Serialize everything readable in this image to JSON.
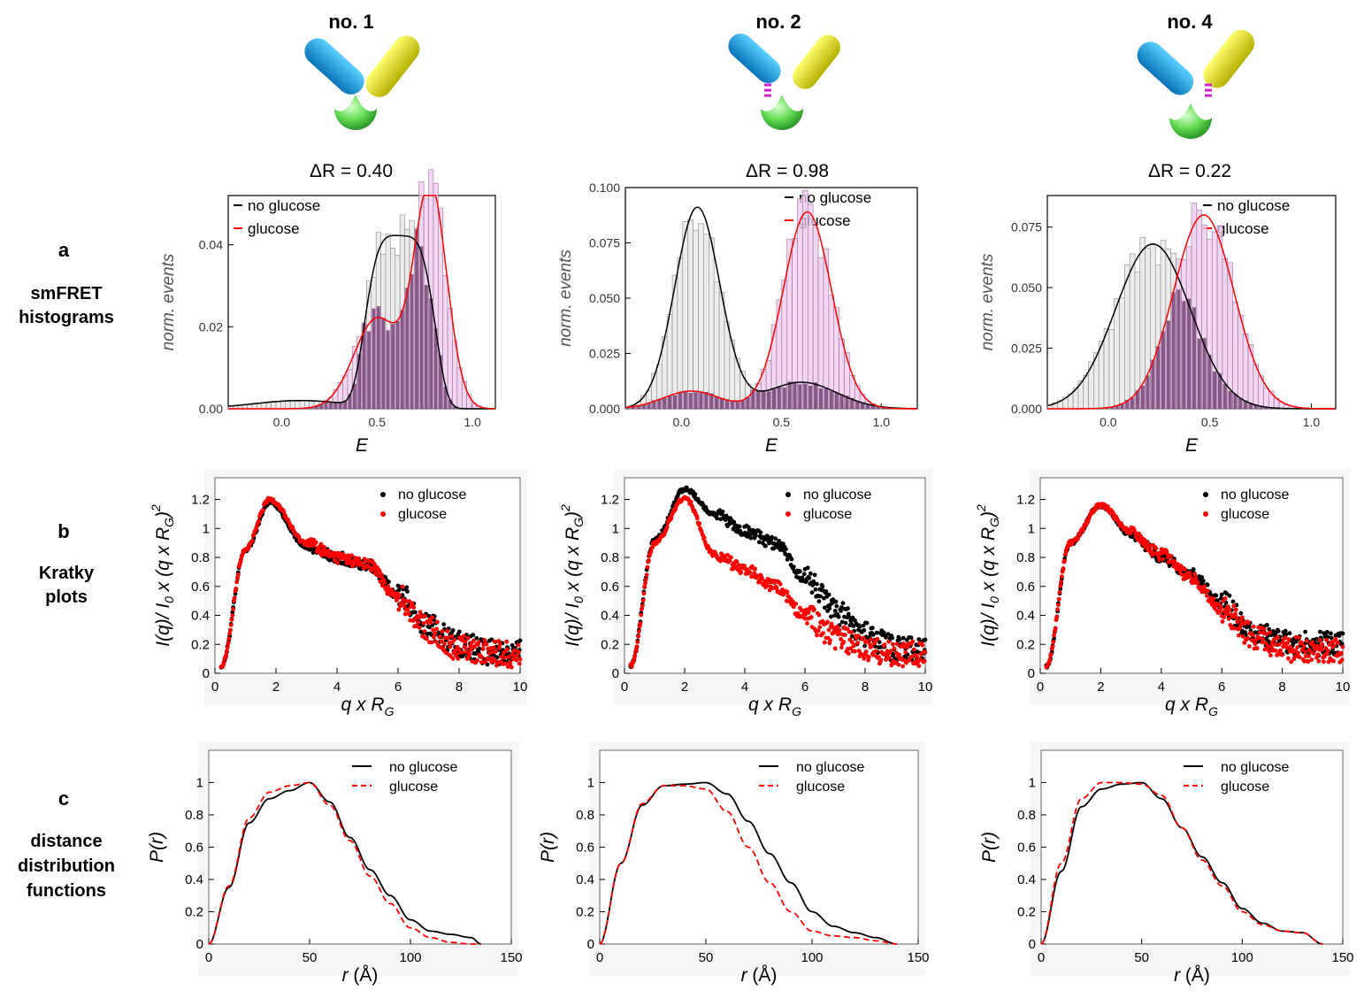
{
  "columns": [
    {
      "title": "no. 1",
      "delta_r": "ΔR = 0.40"
    },
    {
      "title": "no. 2",
      "delta_r": "ΔR = 0.98"
    },
    {
      "title": "no. 4",
      "delta_r": "ΔR = 0.22"
    }
  ],
  "rows": [
    {
      "letter": "a",
      "line1": "smFRET",
      "line2": "histograms"
    },
    {
      "letter": "b",
      "line1": "Kratky",
      "line2": "plots"
    },
    {
      "letter": "c",
      "line1": "distance",
      "line2": "distribution",
      "line3": "functions"
    }
  ],
  "colors": {
    "no_glucose": "#000000",
    "glucose": "#ff0000",
    "hist_no_glucose": "#ececec",
    "hist_glucose": "#eccaec",
    "hist_overlap": "#6b3a6b"
  },
  "chart_data": [
    {
      "type": "bar",
      "panel": "a",
      "column": "no. 1",
      "xlabel": "E",
      "ylabel": "norm. events",
      "xlim": [
        -0.28,
        1.12
      ],
      "ylim": [
        0,
        0.052
      ],
      "xticks": [
        "0.0",
        "0.5",
        "1.0"
      ],
      "yticks": [
        "0.00",
        "0.02",
        "0.04"
      ],
      "legend": [
        "no glucose",
        "glucose"
      ],
      "series": [
        {
          "name": "no glucose",
          "kind": "hist+fit",
          "peak_E": 0.65,
          "plateau": [
            0.5,
            0.78
          ],
          "max": 0.042
        },
        {
          "name": "glucose",
          "kind": "hist+fit",
          "peak_E": 0.78,
          "max": 0.054
        }
      ]
    },
    {
      "type": "bar",
      "panel": "a",
      "column": "no. 2",
      "xlabel": "E",
      "ylabel": "norm. events",
      "xlim": [
        -0.28,
        1.18
      ],
      "ylim": [
        0,
        0.1
      ],
      "xticks": [
        "0.0",
        "0.5",
        "1.0"
      ],
      "yticks": [
        "0.000",
        "0.025",
        "0.050",
        "0.075",
        "0.100"
      ],
      "legend": [
        "no glucose",
        "glucose"
      ],
      "series": [
        {
          "name": "no glucose",
          "kind": "hist+fit",
          "peak_E": 0.08,
          "max": 0.091
        },
        {
          "name": "glucose",
          "kind": "hist+fit",
          "peak_E": 0.63,
          "max": 0.089
        }
      ]
    },
    {
      "type": "bar",
      "panel": "a",
      "column": "no. 4",
      "xlabel": "E",
      "ylabel": "norm. events",
      "xlim": [
        -0.3,
        1.12
      ],
      "ylim": [
        0,
        0.088
      ],
      "xticks": [
        "0.0",
        "0.5",
        "1.0"
      ],
      "yticks": [
        "0.000",
        "0.025",
        "0.050",
        "0.075"
      ],
      "legend": [
        "no glucose",
        "glucose"
      ],
      "series": [
        {
          "name": "no glucose",
          "kind": "hist+fit",
          "peak_E": 0.22,
          "max": 0.068
        },
        {
          "name": "glucose",
          "kind": "hist+fit",
          "peak_E": 0.47,
          "max": 0.08
        }
      ]
    },
    {
      "type": "scatter",
      "panel": "b",
      "column": "no. 1",
      "xlabel": "q x R_G",
      "ylabel": "I(q)/ I_0 x (q x R_G)^2",
      "xlim": [
        0,
        10
      ],
      "ylim": [
        0,
        1.35
      ],
      "xticks": [
        "0",
        "2",
        "4",
        "6",
        "8",
        "10"
      ],
      "yticks": [
        "0",
        "0.2",
        "0.4",
        "0.6",
        "0.8",
        "1",
        "1.2"
      ],
      "legend": [
        "no glucose",
        "glucose"
      ],
      "series": [
        {
          "name": "no glucose",
          "x": [
            0.2,
            1,
            1.8,
            3,
            4,
            5,
            6,
            7,
            8,
            9,
            10
          ],
          "y": [
            0.05,
            0.85,
            1.18,
            0.88,
            0.8,
            0.75,
            0.55,
            0.32,
            0.2,
            0.15,
            0.14
          ]
        },
        {
          "name": "glucose",
          "x": [
            0.2,
            1,
            1.8,
            3,
            4,
            5,
            6,
            7,
            8,
            9,
            10
          ],
          "y": [
            0.05,
            0.86,
            1.2,
            0.9,
            0.8,
            0.75,
            0.52,
            0.3,
            0.18,
            0.14,
            0.12
          ]
        }
      ]
    },
    {
      "type": "scatter",
      "panel": "b",
      "column": "no. 2",
      "xlabel": "q x R_G",
      "ylabel": "I(q)/ I_0 x (q x R_G)^2",
      "xlim": [
        0,
        10
      ],
      "ylim": [
        0,
        1.35
      ],
      "xticks": [
        "0",
        "2",
        "4",
        "6",
        "8",
        "10"
      ],
      "yticks": [
        "0",
        "0.2",
        "0.4",
        "0.6",
        "0.8",
        "1",
        "1.2"
      ],
      "legend": [
        "no glucose",
        "glucose"
      ],
      "series": [
        {
          "name": "no glucose",
          "x": [
            0.2,
            1,
            2,
            3,
            4,
            5,
            6,
            7,
            8,
            9,
            10
          ],
          "y": [
            0.05,
            0.92,
            1.27,
            1.1,
            0.98,
            0.9,
            0.66,
            0.43,
            0.26,
            0.17,
            0.15
          ]
        },
        {
          "name": "glucose",
          "x": [
            0.2,
            1,
            2,
            3,
            4,
            5,
            6,
            7,
            8,
            9,
            10
          ],
          "y": [
            0.05,
            0.9,
            1.21,
            0.82,
            0.72,
            0.6,
            0.4,
            0.25,
            0.16,
            0.13,
            0.14
          ]
        }
      ]
    },
    {
      "type": "scatter",
      "panel": "b",
      "column": "no. 4",
      "xlabel": "q x R_G",
      "ylabel": "I(q)/ I_0 x (q x R_G)^2",
      "xlim": [
        0,
        10
      ],
      "ylim": [
        0,
        1.35
      ],
      "xticks": [
        "0",
        "2",
        "4",
        "6",
        "8",
        "10"
      ],
      "yticks": [
        "0",
        "0.2",
        "0.4",
        "0.6",
        "0.8",
        "1",
        "1.2"
      ],
      "legend": [
        "no glucose",
        "glucose"
      ],
      "series": [
        {
          "name": "no glucose",
          "x": [
            0.2,
            1,
            2,
            3,
            4,
            5,
            6,
            7,
            8,
            9,
            10
          ],
          "y": [
            0.05,
            0.9,
            1.16,
            0.96,
            0.8,
            0.68,
            0.48,
            0.3,
            0.22,
            0.2,
            0.2
          ]
        },
        {
          "name": "glucose",
          "x": [
            0.2,
            1,
            2,
            3,
            4,
            5,
            6,
            7,
            8,
            9,
            10
          ],
          "y": [
            0.05,
            0.9,
            1.16,
            0.98,
            0.82,
            0.66,
            0.44,
            0.26,
            0.17,
            0.15,
            0.15
          ]
        }
      ]
    },
    {
      "type": "line",
      "panel": "c",
      "column": "no. 1",
      "xlabel": "r (Å)",
      "ylabel": "P(r)",
      "xlim": [
        0,
        150
      ],
      "ylim": [
        0,
        1.2
      ],
      "xticks": [
        "0",
        "50",
        "100",
        "150"
      ],
      "yticks": [
        "0",
        "0.2",
        "0.4",
        "0.6",
        "0.8",
        "1"
      ],
      "legend": [
        "no glucose",
        "glucose"
      ],
      "series": [
        {
          "name": "no glucose",
          "x": [
            0,
            10,
            20,
            30,
            40,
            50,
            60,
            70,
            80,
            90,
            100,
            110,
            120,
            130,
            135
          ],
          "y": [
            0,
            0.35,
            0.75,
            0.9,
            0.95,
            1,
            0.88,
            0.66,
            0.46,
            0.3,
            0.15,
            0.08,
            0.06,
            0.04,
            0
          ]
        },
        {
          "name": "glucose",
          "x": [
            0,
            10,
            20,
            30,
            40,
            50,
            60,
            70,
            80,
            90,
            100,
            110,
            120,
            130,
            135
          ],
          "y": [
            0,
            0.36,
            0.78,
            0.94,
            0.98,
            1,
            0.86,
            0.64,
            0.42,
            0.25,
            0.1,
            0.04,
            0.01,
            0,
            0
          ]
        }
      ]
    },
    {
      "type": "line",
      "panel": "c",
      "column": "no. 2",
      "xlabel": "r (Å)",
      "ylabel": "P(r)",
      "xlim": [
        0,
        150
      ],
      "ylim": [
        0,
        1.2
      ],
      "xticks": [
        "0",
        "50",
        "100",
        "150"
      ],
      "yticks": [
        "0",
        "0.2",
        "0.4",
        "0.6",
        "0.8",
        "1"
      ],
      "legend": [
        "no glucose",
        "glucose"
      ],
      "series": [
        {
          "name": "no glucose",
          "x": [
            0,
            10,
            20,
            30,
            40,
            50,
            60,
            70,
            80,
            90,
            100,
            110,
            120,
            130,
            140
          ],
          "y": [
            0,
            0.5,
            0.86,
            0.98,
            0.99,
            1,
            0.93,
            0.76,
            0.56,
            0.38,
            0.2,
            0.11,
            0.07,
            0.04,
            0
          ]
        },
        {
          "name": "glucose",
          "x": [
            0,
            10,
            20,
            30,
            40,
            50,
            60,
            70,
            80,
            90,
            100,
            110,
            120,
            130,
            140
          ],
          "y": [
            0,
            0.5,
            0.87,
            0.98,
            0.98,
            0.96,
            0.82,
            0.6,
            0.38,
            0.2,
            0.08,
            0.05,
            0.04,
            0.02,
            0
          ]
        }
      ]
    },
    {
      "type": "line",
      "panel": "c",
      "column": "no. 4",
      "xlabel": "r (Å)",
      "ylabel": "P(r)",
      "xlim": [
        0,
        150
      ],
      "ylim": [
        0,
        1.2
      ],
      "xticks": [
        "0",
        "50",
        "100",
        "150"
      ],
      "yticks": [
        "0",
        "0.2",
        "0.4",
        "0.6",
        "0.8",
        "1"
      ],
      "legend": [
        "no glucose",
        "glucose"
      ],
      "series": [
        {
          "name": "no glucose",
          "x": [
            0,
            10,
            20,
            30,
            40,
            50,
            60,
            70,
            80,
            90,
            100,
            110,
            120,
            130,
            140
          ],
          "y": [
            0,
            0.45,
            0.85,
            0.96,
            0.99,
            1,
            0.9,
            0.72,
            0.54,
            0.38,
            0.22,
            0.13,
            0.08,
            0.07,
            0
          ]
        },
        {
          "name": "glucose",
          "x": [
            0,
            10,
            20,
            30,
            40,
            50,
            60,
            70,
            80,
            90,
            100,
            110,
            120,
            130,
            140
          ],
          "y": [
            0,
            0.5,
            0.9,
            1,
            1,
            0.99,
            0.92,
            0.72,
            0.52,
            0.36,
            0.2,
            0.12,
            0.08,
            0.07,
            0
          ]
        }
      ]
    }
  ]
}
